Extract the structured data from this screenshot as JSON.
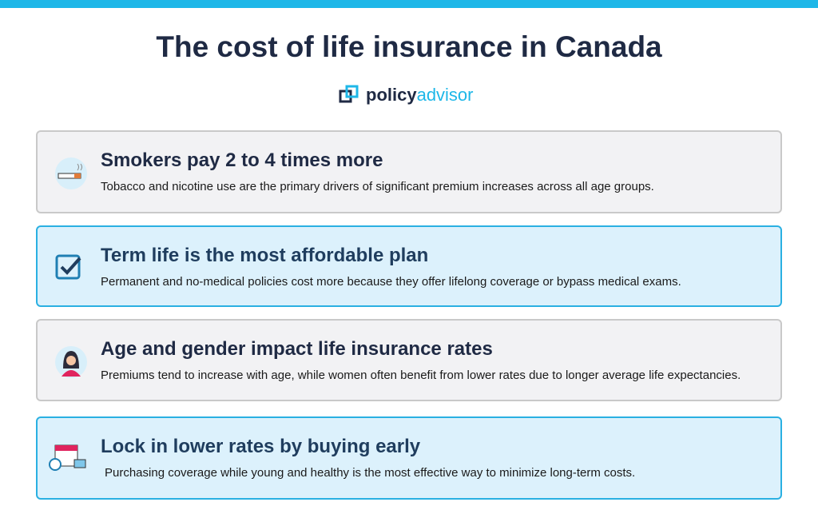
{
  "header": {
    "title": "The cost of life insurance in Canada",
    "brand": [
      "policy",
      "advisor"
    ]
  },
  "cards": [
    {
      "heading": "Smokers pay 2 to 4 times more",
      "text": "Tobacco and nicotine use are the primary drivers of significant premium increases across all age groups."
    },
    {
      "heading": "Term life is the most affordable plan",
      "text": "Permanent and no-medical policies cost more because they offer lifelong coverage or bypass medical exams."
    },
    {
      "heading": "Age and gender impact life insurance rates",
      "text": "Premiums tend to increase with age, while women often benefit from lower rates due to longer average life expectancies."
    },
    {
      "heading": "Lock in lower rates by buying early",
      "text": "Purchasing coverage while young and healthy is the most effective way to minimize long-term costs."
    }
  ]
}
